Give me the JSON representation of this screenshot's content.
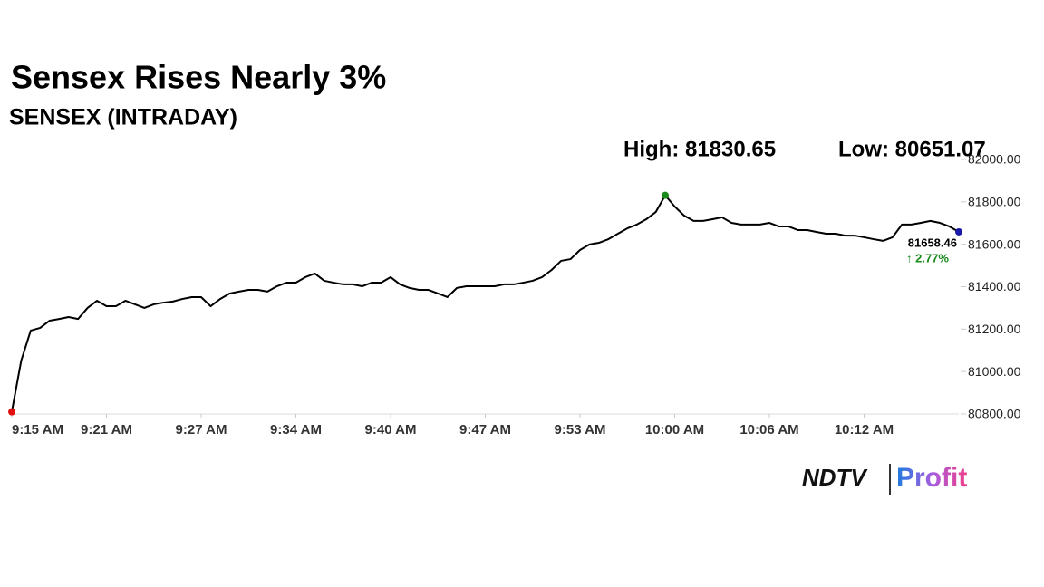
{
  "chart_data": {
    "type": "line",
    "title": "Sensex Rises Nearly 3%",
    "subtitle": "SENSEX (INTRADAY)",
    "annotations": {
      "high": "High: 81830.65",
      "low": "Low: 80651.07",
      "change": "↑ 2.77%"
    },
    "values": [
      80810,
      81052,
      81193,
      81206,
      81240,
      81248,
      81257,
      81248,
      81300,
      81334,
      81308,
      81308,
      81334,
      81317,
      81300,
      81317,
      81325,
      81330,
      81342,
      81351,
      81351,
      81308,
      81342,
      81368,
      81377,
      81385,
      81385,
      81377,
      81402,
      81419,
      81419,
      81445,
      81462,
      81428,
      81419,
      81411,
      81411,
      81402,
      81419,
      81419,
      81445,
      81411,
      81394,
      81385,
      81385,
      81368,
      81351,
      81394,
      81402,
      81402,
      81402,
      81402,
      81411,
      81411,
      81419,
      81428,
      81445,
      81479,
      81522,
      81530,
      81573,
      81599,
      81607,
      81624,
      81650,
      81675,
      81693,
      81718,
      81752,
      81830.65,
      81778,
      81735,
      81710,
      81710,
      81718,
      81727,
      81701,
      81693,
      81693,
      81693,
      81701,
      81684,
      81684,
      81667,
      81667,
      81658,
      81650,
      81650,
      81641,
      81641,
      81633,
      81624,
      81616,
      81633,
      81693,
      81693,
      81701,
      81710,
      81701,
      81684,
      81658.46
    ],
    "color": "#000000",
    "markers": [
      {
        "index": 0,
        "color": "#e01010"
      },
      {
        "index": 69,
        "color": "#1a8a1a"
      },
      {
        "index": 100,
        "color": "#1a1aa8"
      }
    ],
    "xlim": [
      0,
      100
    ],
    "xticks": [
      {
        "value": 0,
        "label": "9:15 AM"
      },
      {
        "value": 10,
        "label": "9:21 AM"
      },
      {
        "value": 20,
        "label": "9:27 AM"
      },
      {
        "value": 30,
        "label": "9:34 AM"
      },
      {
        "value": 40,
        "label": "9:40 AM"
      },
      {
        "value": 50,
        "label": "9:47 AM"
      },
      {
        "value": 60,
        "label": "9:53 AM"
      },
      {
        "value": 70,
        "label": "10:00 AM"
      },
      {
        "value": 80,
        "label": "10:06 AM"
      },
      {
        "value": 90,
        "label": "10:12 AM"
      }
    ],
    "ylim": [
      80800,
      82000
    ],
    "yticks": [
      {
        "value": 80800,
        "label": "80800.00"
      },
      {
        "value": 81000,
        "label": "81000.00"
      },
      {
        "value": 81200,
        "label": "81200.00"
      },
      {
        "value": 81400,
        "label": "81400.00"
      },
      {
        "value": 81600,
        "label": "81600.00"
      },
      {
        "value": 81800,
        "label": "81800.00"
      },
      {
        "value": 82000,
        "label": "82000.00"
      }
    ],
    "change_color": "#1a8a1a"
  },
  "logo": {
    "brand": "NDTV",
    "product": "Profit"
  }
}
